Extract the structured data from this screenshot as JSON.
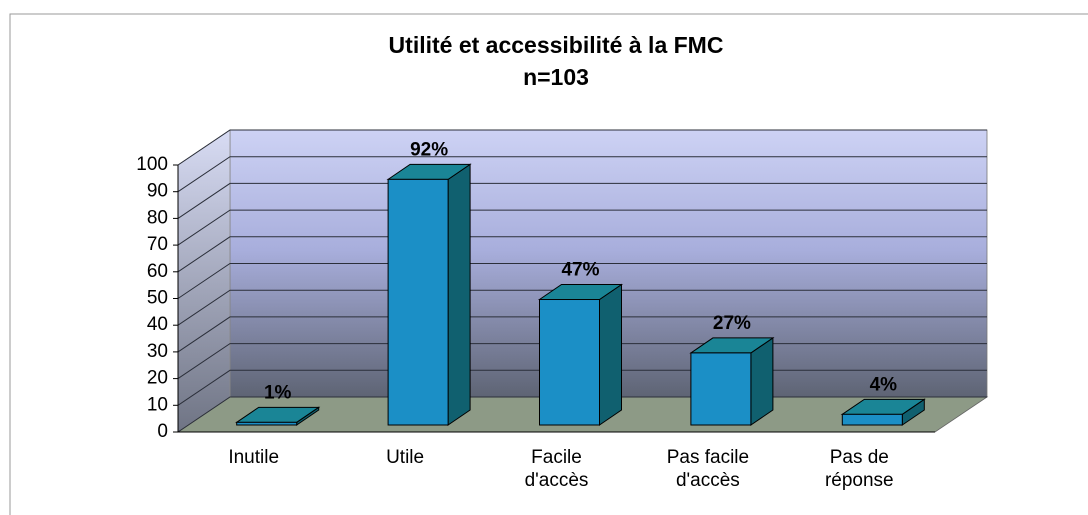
{
  "chart_data": {
    "type": "bar3d",
    "title": "Utilité et accessibilité à la FMC",
    "subtitle": "n=103",
    "categories": [
      "Inutile",
      "Utile",
      "Facile d'accès",
      "Pas facile d'accès",
      "Pas de réponse"
    ],
    "values": [
      1,
      92,
      47,
      27,
      4
    ],
    "value_labels": [
      "1%",
      "92%",
      "47%",
      "27%",
      "4%"
    ],
    "color": "#1b8fc6",
    "ylim": [
      0,
      100
    ],
    "yticks": [
      0,
      10,
      20,
      30,
      40,
      50,
      60,
      70,
      80,
      90,
      100
    ],
    "grid": true
  }
}
